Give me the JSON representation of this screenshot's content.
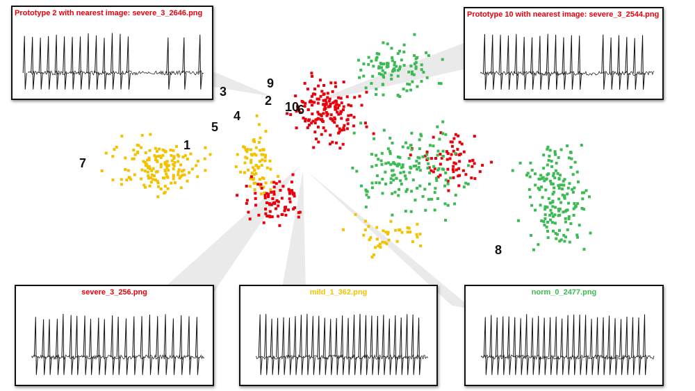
{
  "colors": {
    "severe": "#e8000b",
    "mild": "#f2c200",
    "norm": "#3cba54"
  },
  "panels": {
    "top_left": {
      "title": "Prototype 2 with nearest image: severe_3_2646.png",
      "color": "#e8000b"
    },
    "top_right": {
      "title": "Prototype 10 with nearest image: severe_3_2544.png",
      "color": "#e8000b"
    },
    "bottom_left": {
      "title": "severe_3_256.png",
      "color": "#e8000b"
    },
    "bottom_middle": {
      "title": "mild_1_362.png",
      "color": "#f2c200"
    },
    "bottom_right": {
      "title": "norm_0_2477.png",
      "color": "#3cba54"
    }
  },
  "prototype_labels": [
    "1",
    "2",
    "3",
    "4",
    "5",
    "6",
    "7",
    "8",
    "9",
    "10"
  ],
  "chart_data": {
    "type": "scatter",
    "title": "",
    "xlabel": "",
    "ylabel": "",
    "grid": false,
    "legend": "none",
    "series": [
      {
        "name": "",
        "color": "#e8000b",
        "count": 260
      },
      {
        "name": "",
        "color": "#f2c200",
        "count": 300
      },
      {
        "name": "",
        "color": "#3cba54",
        "count": 420
      }
    ]
  }
}
